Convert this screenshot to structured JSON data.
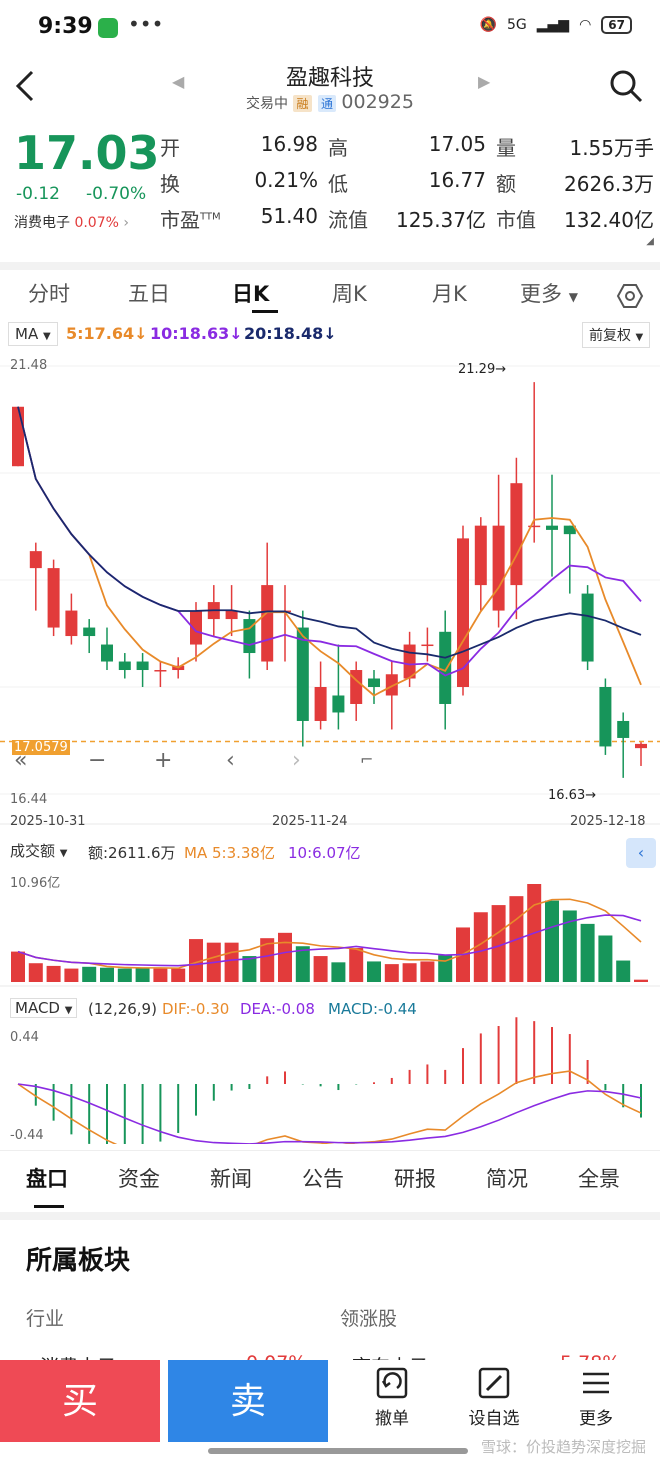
{
  "status": {
    "time": "9:39",
    "net": "5G",
    "battery": "67"
  },
  "header": {
    "name": "盈趣科技",
    "state": "交易中",
    "tag1": "融",
    "tag2": "通",
    "code": "002925"
  },
  "quote": {
    "price": "17.03",
    "change": "-0.12",
    "change_pct": "-0.70%",
    "sector_name": "消费电子",
    "sector_pct": "0.07%",
    "labels": [
      "开",
      "高",
      "量",
      "换",
      "低",
      "额",
      "市盈",
      "流值",
      "市值"
    ],
    "ttm": "TTM",
    "values": [
      "16.98",
      "17.05",
      "1.55万手",
      "0.21%",
      "16.77",
      "2626.3万",
      "51.40",
      "125.37亿",
      "132.40亿"
    ]
  },
  "tabs": [
    "分时",
    "五日",
    "日K",
    "周K",
    "月K",
    "更多"
  ],
  "ma": {
    "label": "MA",
    "ma5": "5:17.64",
    "ma10": "10:18.63",
    "ma20": "20:18.48",
    "adj": "前复权"
  },
  "kchart": {
    "ymax_label": "21.48",
    "ymin_label": "16.44",
    "price_line": "17.0579",
    "high_mark": "21.29→",
    "low_mark": "16.63→",
    "dates": [
      "2025-10-31",
      "2025-11-24",
      "2025-12-18"
    ]
  },
  "volume": {
    "label": "成交额",
    "amount": "额:2611.6万",
    "ma5": "MA 5:3.38亿",
    "ma10": "10:6.07亿",
    "ymax": "10.96亿"
  },
  "macd": {
    "label": "MACD",
    "params": "(12,26,9)",
    "dif": "DIF:-0.30",
    "dea": "DEA:-0.08",
    "macd": "MACD:-0.44",
    "top": "0.44",
    "bottom": "-0.44"
  },
  "chart_data": {
    "type": "candlestick",
    "x_range": [
      "2025-10-31",
      "2025-12-18"
    ],
    "y_range": [
      16.44,
      21.48
    ],
    "candles": [
      {
        "o": 20.3,
        "c": 21.0,
        "h": 21.0,
        "l": 20.3
      },
      {
        "o": 19.1,
        "c": 19.3,
        "h": 19.4,
        "l": 18.6
      },
      {
        "o": 18.4,
        "c": 19.1,
        "h": 19.2,
        "l": 18.3
      },
      {
        "o": 18.3,
        "c": 18.6,
        "h": 18.8,
        "l": 18.2
      },
      {
        "o": 18.4,
        "c": 18.3,
        "h": 18.5,
        "l": 18.1
      },
      {
        "o": 18.2,
        "c": 18.0,
        "h": 18.4,
        "l": 17.9
      },
      {
        "o": 18.0,
        "c": 17.9,
        "h": 18.1,
        "l": 17.8
      },
      {
        "o": 18.0,
        "c": 17.9,
        "h": 18.1,
        "l": 17.7
      },
      {
        "o": 17.9,
        "c": 17.9,
        "h": 18.0,
        "l": 17.7
      },
      {
        "o": 17.9,
        "c": 17.95,
        "h": 18.05,
        "l": 17.8
      },
      {
        "o": 18.2,
        "c": 18.6,
        "h": 18.7,
        "l": 18.0
      },
      {
        "o": 18.5,
        "c": 18.7,
        "h": 18.9,
        "l": 18.3
      },
      {
        "o": 18.5,
        "c": 18.6,
        "h": 18.9,
        "l": 18.3
      },
      {
        "o": 18.5,
        "c": 18.1,
        "h": 18.6,
        "l": 17.8
      },
      {
        "o": 18.0,
        "c": 18.9,
        "h": 19.4,
        "l": 17.9
      },
      {
        "o": 18.6,
        "c": 18.6,
        "h": 18.9,
        "l": 18.0
      },
      {
        "o": 18.4,
        "c": 17.3,
        "h": 18.6,
        "l": 17.0
      },
      {
        "o": 17.3,
        "c": 17.7,
        "h": 18.0,
        "l": 17.2
      },
      {
        "o": 17.6,
        "c": 17.4,
        "h": 18.2,
        "l": 17.2
      },
      {
        "o": 17.5,
        "c": 17.9,
        "h": 18.0,
        "l": 17.3
      },
      {
        "o": 17.8,
        "c": 17.7,
        "h": 17.9,
        "l": 17.5
      },
      {
        "o": 17.6,
        "c": 17.85,
        "h": 18.0,
        "l": 17.2
      },
      {
        "o": 17.8,
        "c": 18.2,
        "h": 18.35,
        "l": 17.7
      },
      {
        "o": 18.2,
        "c": 18.2,
        "h": 18.4,
        "l": 18.0
      },
      {
        "o": 18.35,
        "c": 17.5,
        "h": 18.6,
        "l": 17.2
      },
      {
        "o": 17.7,
        "c": 19.45,
        "h": 19.6,
        "l": 17.6
      },
      {
        "o": 18.9,
        "c": 19.6,
        "h": 19.7,
        "l": 18.6
      },
      {
        "o": 18.6,
        "c": 19.6,
        "h": 20.2,
        "l": 18.4
      },
      {
        "o": 18.9,
        "c": 20.1,
        "h": 20.4,
        "l": 18.5
      },
      {
        "o": 19.6,
        "c": 19.6,
        "h": 21.29,
        "l": 19.4
      },
      {
        "o": 19.6,
        "c": 19.55,
        "h": 20.2,
        "l": 19.0
      },
      {
        "o": 19.6,
        "c": 19.5,
        "h": 19.6,
        "l": 18.8
      },
      {
        "o": 18.8,
        "c": 18.0,
        "h": 18.9,
        "l": 17.9
      },
      {
        "o": 17.7,
        "c": 17.0,
        "h": 17.8,
        "l": 16.9
      },
      {
        "o": 17.3,
        "c": 17.1,
        "h": 17.4,
        "l": 16.63
      },
      {
        "o": 16.98,
        "c": 17.03,
        "h": 17.05,
        "l": 16.77
      }
    ],
    "volume": [
      3.4,
      2.1,
      1.8,
      1.5,
      1.7,
      1.6,
      1.5,
      1.6,
      1.5,
      1.5,
      4.8,
      4.4,
      4.4,
      2.9,
      4.9,
      5.5,
      4.0,
      2.9,
      2.2,
      3.8,
      2.3,
      2.0,
      2.1,
      2.3,
      3.0,
      6.1,
      7.8,
      8.6,
      9.6,
      10.96,
      9.1,
      8.0,
      6.5,
      5.2,
      2.4,
      0.26
    ]
  }
}
